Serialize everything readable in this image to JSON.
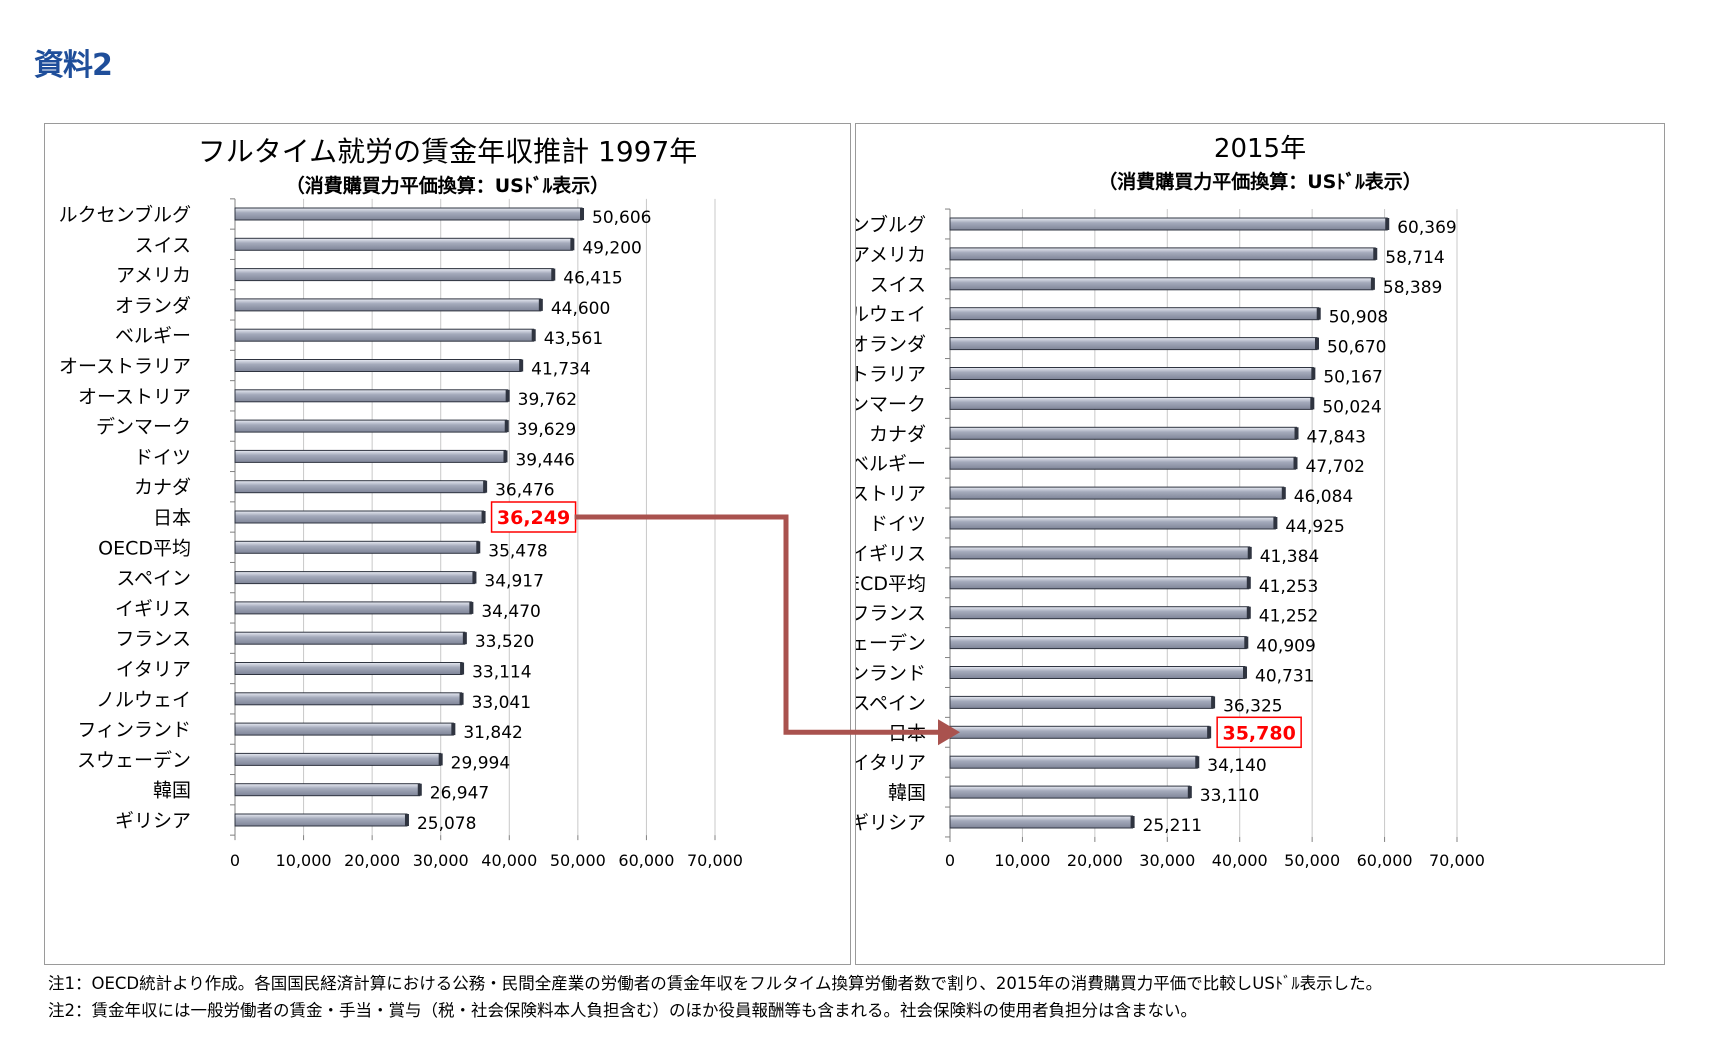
{
  "doc_label": "資料2",
  "chart_data": [
    {
      "type": "bar",
      "orientation": "horizontal",
      "title": "フルタイム就労の賃金年収推計 1997年",
      "subtitle": "（消費購買力平価換算：USﾄﾞﾙ表示）",
      "categories": [
        "ルクセンブルグ",
        "スイス",
        "アメリカ",
        "オランダ",
        "ベルギー",
        "オーストラリア",
        "オーストリア",
        "デンマーク",
        "ドイツ",
        "カナダ",
        "日本",
        "OECD平均",
        "スペイン",
        "イギリス",
        "フランス",
        "イタリア",
        "ノルウェイ",
        "フィンランド",
        "スウェーデン",
        "韓国",
        "ギリシア"
      ],
      "values": [
        50606,
        49200,
        46415,
        44600,
        43561,
        41734,
        39762,
        39629,
        39446,
        36476,
        36249,
        35478,
        34917,
        34470,
        33520,
        33114,
        33041,
        31842,
        29994,
        26947,
        25078
      ],
      "value_labels": [
        "50,606",
        "49,200",
        "46,415",
        "44,600",
        "43,561",
        "41,734",
        "39,762",
        "39,629",
        "39,446",
        "36,476",
        "36,249",
        "35,478",
        "34,917",
        "34,470",
        "33,520",
        "33,114",
        "33,041",
        "31,842",
        "29,994",
        "26,947",
        "25,078"
      ],
      "xlim": [
        0,
        70000
      ],
      "xticks": [
        "0",
        "10,000",
        "20,000",
        "30,000",
        "40,000",
        "50,000",
        "60,000",
        "70,000"
      ],
      "highlight_category": "日本",
      "bar_color": "#7f8598",
      "highlight_color": "#ff0000",
      "grid": "vertical"
    },
    {
      "type": "bar",
      "orientation": "horizontal",
      "title": "2015年",
      "subtitle": "（消費購買力平価換算：USﾄﾞﾙ表示）",
      "categories": [
        "ルクセンブルグ",
        "アメリカ",
        "スイス",
        "ノルウェイ",
        "オランダ",
        "オーストラリア",
        "デンマーク",
        "カナダ",
        "ベルギー",
        "オーストリア",
        "ドイツ",
        "イギリス",
        "OECD平均",
        "フランス",
        "スウェーデン",
        "フィンランド",
        "スペイン",
        "日本",
        "イタリア",
        "韓国",
        "ギリシア"
      ],
      "values": [
        60369,
        58714,
        58389,
        50908,
        50670,
        50167,
        50024,
        47843,
        47702,
        46084,
        44925,
        41384,
        41253,
        41252,
        40909,
        40731,
        36325,
        35780,
        34140,
        33110,
        25211
      ],
      "value_labels": [
        "60,369",
        "58,714",
        "58,389",
        "50,908",
        "50,670",
        "50,167",
        "50,024",
        "47,843",
        "47,702",
        "46,084",
        "44,925",
        "41,384",
        "41,253",
        "41,252",
        "40,909",
        "40,731",
        "36,325",
        "35,780",
        "34,140",
        "33,110",
        "25,211"
      ],
      "xlim": [
        0,
        70000
      ],
      "xticks": [
        "0",
        "10,000",
        "20,000",
        "30,000",
        "40,000",
        "50,000",
        "60,000",
        "70,000"
      ],
      "highlight_category": "日本",
      "bar_color": "#7f8598",
      "highlight_color": "#ff0000",
      "grid": "vertical"
    }
  ],
  "connector_color": "#a9524e",
  "notes": {
    "note1": "注1：OECD統計より作成。各国国民経済計算における公務・民間全産業の労働者の賃金年収をフルタイム換算労働者数で割り、2015年の消費購買力平価で比較しUSﾄﾞﾙ表示した。",
    "note2": "注2：賃金年収には一般労働者の賃金・手当・賞与（税・社会保険料本人負担含む）のほか役員報酬等も含まれる。社会保険料の使用者負担分は含まない。"
  }
}
